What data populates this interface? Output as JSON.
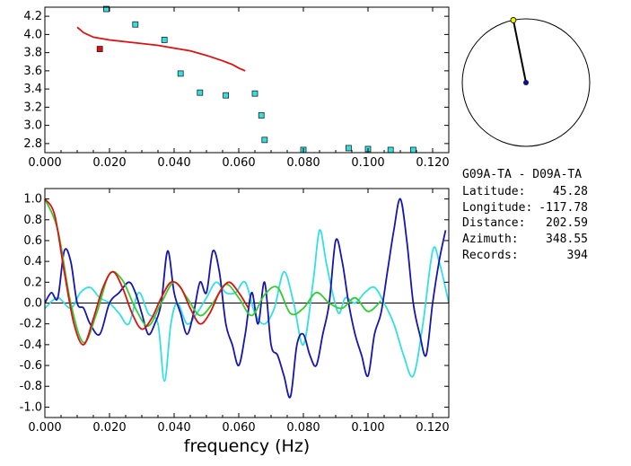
{
  "info": {
    "title": "G09A-TA - D09A-TA",
    "rows": [
      {
        "label": "Latitude:",
        "value": "45.28"
      },
      {
        "label": "Longitude:",
        "value": "-117.78"
      },
      {
        "label": "Distance:",
        "value": "202.59"
      },
      {
        "label": "Azimuth:",
        "value": "348.55"
      },
      {
        "label": "Records:",
        "value": "394"
      }
    ]
  },
  "colors": {
    "axis": "#000000",
    "red": "#dd1111",
    "blue": "#1515b0",
    "cyan": "#33e0e0",
    "green": "#33cc33",
    "yellow": "#f0f000",
    "navy": "#101080"
  },
  "chart_data": [
    {
      "type": "scatter",
      "xlim": [
        0.0,
        0.125
      ],
      "ylim": [
        2.7,
        4.3
      ],
      "xticks": [
        "0.000",
        "0.020",
        "0.040",
        "0.060",
        "0.080",
        "0.100",
        "0.120"
      ],
      "yticks": [
        "2.8",
        "3.0",
        "3.2",
        "3.4",
        "3.6",
        "3.8",
        "4.0",
        "4.2"
      ],
      "points": [
        {
          "x": 0.017,
          "y": 3.84,
          "color": "red"
        },
        {
          "x": 0.019,
          "y": 4.28,
          "color": "cyan"
        },
        {
          "x": 0.028,
          "y": 4.11,
          "color": "cyan"
        },
        {
          "x": 0.037,
          "y": 3.94,
          "color": "cyan"
        },
        {
          "x": 0.042,
          "y": 3.57,
          "color": "cyan"
        },
        {
          "x": 0.048,
          "y": 3.36,
          "color": "cyan"
        },
        {
          "x": 0.056,
          "y": 3.33,
          "color": "cyan"
        },
        {
          "x": 0.065,
          "y": 3.35,
          "color": "cyan"
        },
        {
          "x": 0.067,
          "y": 3.11,
          "color": "cyan"
        },
        {
          "x": 0.068,
          "y": 2.84,
          "color": "cyan"
        },
        {
          "x": 0.08,
          "y": 2.73,
          "color": "cyan"
        },
        {
          "x": 0.094,
          "y": 2.75,
          "color": "cyan"
        },
        {
          "x": 0.1,
          "y": 2.74,
          "color": "cyan"
        },
        {
          "x": 0.107,
          "y": 2.73,
          "color": "cyan"
        },
        {
          "x": 0.114,
          "y": 2.73,
          "color": "cyan"
        }
      ],
      "curve": {
        "color": "red",
        "x": [
          0.01,
          0.012,
          0.015,
          0.02,
          0.025,
          0.03,
          0.035,
          0.04,
          0.045,
          0.05,
          0.055,
          0.058,
          0.06,
          0.062
        ],
        "y": [
          4.08,
          4.02,
          3.97,
          3.94,
          3.92,
          3.9,
          3.88,
          3.85,
          3.82,
          3.77,
          3.71,
          3.67,
          3.63,
          3.6
        ]
      }
    },
    {
      "type": "line",
      "xlabel": "frequency (Hz)",
      "xlim": [
        0.0,
        0.125
      ],
      "ylim": [
        -1.1,
        1.1
      ],
      "xticks": [
        "0.000",
        "0.020",
        "0.040",
        "0.060",
        "0.080",
        "0.100",
        "0.120"
      ],
      "yticks": [
        "1.0",
        "0.8",
        "0.6",
        "0.4",
        "0.2",
        "0.0",
        "-0.2",
        "-0.4",
        "-0.6",
        "-0.8",
        "-1.0"
      ],
      "series": [
        {
          "color": "cyan",
          "x": [
            0.0,
            0.004,
            0.008,
            0.011,
            0.014,
            0.017,
            0.02,
            0.023,
            0.026,
            0.029,
            0.032,
            0.035,
            0.037,
            0.039,
            0.041,
            0.044,
            0.047,
            0.05,
            0.053,
            0.056,
            0.059,
            0.062,
            0.065,
            0.068,
            0.071,
            0.074,
            0.077,
            0.08,
            0.083,
            0.085,
            0.087,
            0.089,
            0.091,
            0.093,
            0.096,
            0.099,
            0.102,
            0.105,
            0.108,
            0.111,
            0.114,
            0.117,
            0.12,
            0.122,
            0.125
          ],
          "y": [
            -0.05,
            0.05,
            -0.05,
            0.1,
            0.15,
            0.05,
            0.0,
            -0.1,
            -0.2,
            0.1,
            -0.1,
            -0.2,
            -0.75,
            -0.2,
            0.0,
            -0.2,
            -0.1,
            0.05,
            0.2,
            0.1,
            0.1,
            0.2,
            -0.1,
            -0.2,
            -0.05,
            0.3,
            0.0,
            -0.4,
            0.2,
            0.7,
            0.4,
            0.1,
            -0.1,
            0.05,
            0.0,
            0.1,
            0.15,
            0.0,
            -0.2,
            -0.5,
            -0.7,
            -0.2,
            0.5,
            0.4,
            0.0
          ]
        },
        {
          "color": "blue",
          "x": [
            0.0,
            0.002,
            0.004,
            0.006,
            0.008,
            0.01,
            0.012,
            0.014,
            0.017,
            0.02,
            0.023,
            0.026,
            0.028,
            0.03,
            0.032,
            0.034,
            0.036,
            0.038,
            0.04,
            0.042,
            0.044,
            0.046,
            0.048,
            0.05,
            0.052,
            0.054,
            0.056,
            0.058,
            0.06,
            0.062,
            0.064,
            0.066,
            0.068,
            0.07,
            0.072,
            0.074,
            0.076,
            0.078,
            0.08,
            0.082,
            0.084,
            0.086,
            0.088,
            0.09,
            0.092,
            0.094,
            0.096,
            0.098,
            0.1,
            0.102,
            0.104,
            0.106,
            0.108,
            0.11,
            0.112,
            0.114,
            0.116,
            0.118,
            0.12,
            0.122,
            0.124
          ],
          "y": [
            0.0,
            0.1,
            0.05,
            0.5,
            0.4,
            0.0,
            -0.05,
            -0.2,
            -0.3,
            0.0,
            0.1,
            0.2,
            0.1,
            -0.1,
            -0.3,
            -0.2,
            0.0,
            0.5,
            0.1,
            -0.1,
            -0.3,
            -0.1,
            0.2,
            0.1,
            0.5,
            0.3,
            -0.2,
            -0.4,
            -0.6,
            -0.3,
            0.1,
            -0.2,
            0.2,
            -0.4,
            -0.5,
            -0.7,
            -0.9,
            -0.4,
            -0.3,
            -0.5,
            -0.6,
            -0.3,
            0.0,
            0.6,
            0.4,
            0.0,
            -0.3,
            -0.5,
            -0.7,
            -0.3,
            -0.1,
            0.3,
            0.7,
            1.0,
            0.6,
            0.0,
            -0.3,
            -0.5,
            0.0,
            0.4,
            0.7
          ]
        },
        {
          "color": "green",
          "x": [
            0.0,
            0.004,
            0.008,
            0.012,
            0.016,
            0.02,
            0.024,
            0.028,
            0.032,
            0.036,
            0.04,
            0.044,
            0.048,
            0.052,
            0.056,
            0.06,
            0.064,
            0.068,
            0.072,
            0.076,
            0.08,
            0.084,
            0.088,
            0.092,
            0.096,
            0.1,
            0.104
          ],
          "y": [
            1.0,
            0.7,
            0.0,
            -0.38,
            -0.1,
            0.28,
            0.22,
            -0.05,
            -0.22,
            0.0,
            0.2,
            0.05,
            -0.12,
            0.0,
            0.18,
            0.05,
            -0.12,
            0.08,
            0.15,
            -0.1,
            -0.05,
            0.1,
            0.0,
            -0.05,
            0.05,
            -0.08,
            0.02
          ]
        },
        {
          "color": "red",
          "x": [
            0.0,
            0.003,
            0.006,
            0.009,
            0.012,
            0.015,
            0.018,
            0.021,
            0.024,
            0.027,
            0.03,
            0.033,
            0.036,
            0.039,
            0.042,
            0.045,
            0.048,
            0.051,
            0.054,
            0.057,
            0.06,
            0.063
          ],
          "y": [
            1.0,
            0.85,
            0.3,
            -0.2,
            -0.4,
            -0.15,
            0.15,
            0.3,
            0.15,
            -0.1,
            -0.25,
            -0.15,
            0.05,
            0.2,
            0.15,
            -0.05,
            -0.2,
            -0.1,
            0.1,
            0.2,
            0.1,
            -0.05
          ]
        }
      ]
    }
  ],
  "azimuth_plot": {
    "azimuth_deg": 348.55,
    "radius_fraction": 0.0
  }
}
